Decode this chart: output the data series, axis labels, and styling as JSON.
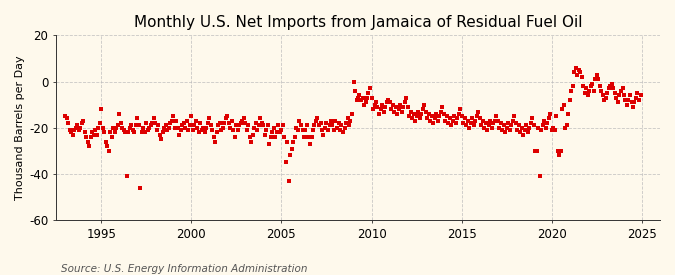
{
  "title": "Monthly U.S. Net Imports from Jamaica of Residual Fuel Oil",
  "ylabel": "Thousand Barrels per Day",
  "source": "Source: U.S. Energy Information Administration",
  "ylim": [
    -60,
    20
  ],
  "yticks": [
    -60,
    -40,
    -20,
    0,
    20
  ],
  "xlim_start": 1992.5,
  "xlim_end": 2026.0,
  "xticks": [
    1995,
    2000,
    2005,
    2010,
    2015,
    2020,
    2025
  ],
  "marker_color": "#dd0000",
  "marker_size": 5,
  "background_color": "#fef9ec",
  "grid_color": "#bbbbbb",
  "title_fontsize": 11,
  "axis_fontsize": 8.5,
  "source_fontsize": 7.5,
  "data": [
    [
      1993.0,
      -15
    ],
    [
      1993.08,
      -16
    ],
    [
      1993.17,
      -18
    ],
    [
      1993.25,
      -21
    ],
    [
      1993.33,
      -22
    ],
    [
      1993.42,
      -23
    ],
    [
      1993.5,
      -21
    ],
    [
      1993.58,
      -20
    ],
    [
      1993.67,
      -19
    ],
    [
      1993.75,
      -21
    ],
    [
      1993.83,
      -20
    ],
    [
      1993.92,
      -18
    ],
    [
      1994.0,
      -17
    ],
    [
      1994.08,
      -22
    ],
    [
      1994.17,
      -24
    ],
    [
      1994.25,
      -26
    ],
    [
      1994.33,
      -28
    ],
    [
      1994.42,
      -24
    ],
    [
      1994.5,
      -22
    ],
    [
      1994.58,
      -23
    ],
    [
      1994.67,
      -21
    ],
    [
      1994.75,
      -23
    ],
    [
      1994.83,
      -20
    ],
    [
      1994.92,
      -18
    ],
    [
      1995.0,
      -12
    ],
    [
      1995.08,
      -20
    ],
    [
      1995.17,
      -22
    ],
    [
      1995.25,
      -26
    ],
    [
      1995.33,
      -28
    ],
    [
      1995.42,
      -30
    ],
    [
      1995.5,
      -22
    ],
    [
      1995.58,
      -24
    ],
    [
      1995.67,
      -20
    ],
    [
      1995.75,
      -22
    ],
    [
      1995.83,
      -20
    ],
    [
      1995.92,
      -19
    ],
    [
      1996.0,
      -14
    ],
    [
      1996.08,
      -18
    ],
    [
      1996.17,
      -20
    ],
    [
      1996.25,
      -21
    ],
    [
      1996.33,
      -22
    ],
    [
      1996.42,
      -41
    ],
    [
      1996.5,
      -22
    ],
    [
      1996.58,
      -20
    ],
    [
      1996.67,
      -19
    ],
    [
      1996.75,
      -21
    ],
    [
      1996.83,
      -22
    ],
    [
      1996.92,
      -19
    ],
    [
      1997.0,
      -16
    ],
    [
      1997.08,
      -19
    ],
    [
      1997.17,
      -46
    ],
    [
      1997.25,
      -22
    ],
    [
      1997.33,
      -20
    ],
    [
      1997.42,
      -22
    ],
    [
      1997.5,
      -18
    ],
    [
      1997.58,
      -21
    ],
    [
      1997.67,
      -20
    ],
    [
      1997.75,
      -19
    ],
    [
      1997.83,
      -18
    ],
    [
      1997.92,
      -16
    ],
    [
      1998.0,
      -18
    ],
    [
      1998.08,
      -21
    ],
    [
      1998.17,
      -19
    ],
    [
      1998.25,
      -23
    ],
    [
      1998.33,
      -25
    ],
    [
      1998.42,
      -22
    ],
    [
      1998.5,
      -20
    ],
    [
      1998.58,
      -19
    ],
    [
      1998.67,
      -21
    ],
    [
      1998.75,
      -20
    ],
    [
      1998.83,
      -18
    ],
    [
      1998.92,
      -17
    ],
    [
      1999.0,
      -15
    ],
    [
      1999.08,
      -20
    ],
    [
      1999.17,
      -17
    ],
    [
      1999.25,
      -20
    ],
    [
      1999.33,
      -23
    ],
    [
      1999.42,
      -21
    ],
    [
      1999.5,
      -19
    ],
    [
      1999.58,
      -18
    ],
    [
      1999.67,
      -20
    ],
    [
      1999.75,
      -17
    ],
    [
      1999.83,
      -21
    ],
    [
      1999.92,
      -19
    ],
    [
      2000.0,
      -15
    ],
    [
      2000.08,
      -21
    ],
    [
      2000.17,
      -19
    ],
    [
      2000.25,
      -17
    ],
    [
      2000.33,
      -20
    ],
    [
      2000.42,
      -22
    ],
    [
      2000.5,
      -18
    ],
    [
      2000.58,
      -21
    ],
    [
      2000.67,
      -20
    ],
    [
      2000.75,
      -22
    ],
    [
      2000.83,
      -20
    ],
    [
      2000.92,
      -18
    ],
    [
      2001.0,
      -16
    ],
    [
      2001.08,
      -19
    ],
    [
      2001.17,
      -21
    ],
    [
      2001.25,
      -24
    ],
    [
      2001.33,
      -26
    ],
    [
      2001.42,
      -22
    ],
    [
      2001.5,
      -19
    ],
    [
      2001.58,
      -18
    ],
    [
      2001.67,
      -21
    ],
    [
      2001.75,
      -20
    ],
    [
      2001.83,
      -18
    ],
    [
      2001.92,
      -16
    ],
    [
      2002.0,
      -15
    ],
    [
      2002.08,
      -18
    ],
    [
      2002.17,
      -20
    ],
    [
      2002.25,
      -17
    ],
    [
      2002.33,
      -21
    ],
    [
      2002.42,
      -24
    ],
    [
      2002.5,
      -19
    ],
    [
      2002.58,
      -21
    ],
    [
      2002.67,
      -19
    ],
    [
      2002.75,
      -18
    ],
    [
      2002.83,
      -17
    ],
    [
      2002.92,
      -16
    ],
    [
      2003.0,
      -18
    ],
    [
      2003.08,
      -21
    ],
    [
      2003.17,
      -19
    ],
    [
      2003.25,
      -24
    ],
    [
      2003.33,
      -26
    ],
    [
      2003.42,
      -23
    ],
    [
      2003.5,
      -20
    ],
    [
      2003.58,
      -18
    ],
    [
      2003.67,
      -21
    ],
    [
      2003.75,
      -19
    ],
    [
      2003.83,
      -16
    ],
    [
      2003.92,
      -18
    ],
    [
      2004.0,
      -19
    ],
    [
      2004.08,
      -23
    ],
    [
      2004.17,
      -21
    ],
    [
      2004.25,
      -19
    ],
    [
      2004.33,
      -27
    ],
    [
      2004.42,
      -24
    ],
    [
      2004.5,
      -22
    ],
    [
      2004.58,
      -20
    ],
    [
      2004.67,
      -24
    ],
    [
      2004.75,
      -22
    ],
    [
      2004.83,
      -19
    ],
    [
      2004.92,
      -22
    ],
    [
      2005.0,
      -21
    ],
    [
      2005.08,
      -19
    ],
    [
      2005.17,
      -24
    ],
    [
      2005.25,
      -35
    ],
    [
      2005.33,
      -26
    ],
    [
      2005.42,
      -43
    ],
    [
      2005.5,
      -32
    ],
    [
      2005.58,
      -29
    ],
    [
      2005.67,
      -26
    ],
    [
      2005.75,
      -24
    ],
    [
      2005.83,
      -20
    ],
    [
      2005.92,
      -21
    ],
    [
      2006.0,
      -17
    ],
    [
      2006.08,
      -19
    ],
    [
      2006.17,
      -21
    ],
    [
      2006.25,
      -24
    ],
    [
      2006.33,
      -21
    ],
    [
      2006.42,
      -19
    ],
    [
      2006.5,
      -24
    ],
    [
      2006.58,
      -27
    ],
    [
      2006.67,
      -24
    ],
    [
      2006.75,
      -21
    ],
    [
      2006.83,
      -19
    ],
    [
      2006.92,
      -17
    ],
    [
      2007.0,
      -16
    ],
    [
      2007.08,
      -19
    ],
    [
      2007.17,
      -18
    ],
    [
      2007.25,
      -21
    ],
    [
      2007.33,
      -23
    ],
    [
      2007.42,
      -20
    ],
    [
      2007.5,
      -18
    ],
    [
      2007.58,
      -21
    ],
    [
      2007.67,
      -19
    ],
    [
      2007.75,
      -17
    ],
    [
      2007.83,
      -19
    ],
    [
      2007.92,
      -21
    ],
    [
      2008.0,
      -17
    ],
    [
      2008.08,
      -20
    ],
    [
      2008.17,
      -18
    ],
    [
      2008.25,
      -21
    ],
    [
      2008.33,
      -19
    ],
    [
      2008.42,
      -22
    ],
    [
      2008.5,
      -20
    ],
    [
      2008.58,
      -18
    ],
    [
      2008.67,
      -16
    ],
    [
      2008.75,
      -19
    ],
    [
      2008.83,
      -17
    ],
    [
      2008.92,
      -14
    ],
    [
      2009.0,
      0
    ],
    [
      2009.08,
      -4
    ],
    [
      2009.17,
      -8
    ],
    [
      2009.25,
      -7
    ],
    [
      2009.33,
      -6
    ],
    [
      2009.42,
      -8
    ],
    [
      2009.5,
      -7
    ],
    [
      2009.58,
      -10
    ],
    [
      2009.67,
      -9
    ],
    [
      2009.75,
      -7
    ],
    [
      2009.83,
      -5
    ],
    [
      2009.92,
      -3
    ],
    [
      2010.0,
      -7
    ],
    [
      2010.08,
      -12
    ],
    [
      2010.17,
      -10
    ],
    [
      2010.25,
      -9
    ],
    [
      2010.33,
      -11
    ],
    [
      2010.42,
      -14
    ],
    [
      2010.5,
      -12
    ],
    [
      2010.58,
      -10
    ],
    [
      2010.67,
      -13
    ],
    [
      2010.75,
      -11
    ],
    [
      2010.83,
      -9
    ],
    [
      2010.92,
      -8
    ],
    [
      2011.0,
      -9
    ],
    [
      2011.08,
      -12
    ],
    [
      2011.17,
      -10
    ],
    [
      2011.25,
      -13
    ],
    [
      2011.33,
      -11
    ],
    [
      2011.42,
      -14
    ],
    [
      2011.5,
      -12
    ],
    [
      2011.58,
      -10
    ],
    [
      2011.67,
      -13
    ],
    [
      2011.75,
      -11
    ],
    [
      2011.83,
      -9
    ],
    [
      2011.92,
      -7
    ],
    [
      2012.0,
      -11
    ],
    [
      2012.08,
      -15
    ],
    [
      2012.17,
      -13
    ],
    [
      2012.25,
      -16
    ],
    [
      2012.33,
      -14
    ],
    [
      2012.42,
      -17
    ],
    [
      2012.5,
      -15
    ],
    [
      2012.58,
      -13
    ],
    [
      2012.67,
      -16
    ],
    [
      2012.75,
      -14
    ],
    [
      2012.83,
      -12
    ],
    [
      2012.92,
      -10
    ],
    [
      2013.0,
      -13
    ],
    [
      2013.08,
      -16
    ],
    [
      2013.17,
      -14
    ],
    [
      2013.25,
      -17
    ],
    [
      2013.33,
      -15
    ],
    [
      2013.42,
      -18
    ],
    [
      2013.5,
      -16
    ],
    [
      2013.58,
      -14
    ],
    [
      2013.67,
      -17
    ],
    [
      2013.75,
      -15
    ],
    [
      2013.83,
      -13
    ],
    [
      2013.92,
      -11
    ],
    [
      2014.0,
      -14
    ],
    [
      2014.08,
      -17
    ],
    [
      2014.17,
      -15
    ],
    [
      2014.25,
      -18
    ],
    [
      2014.33,
      -16
    ],
    [
      2014.42,
      -19
    ],
    [
      2014.5,
      -17
    ],
    [
      2014.58,
      -15
    ],
    [
      2014.67,
      -18
    ],
    [
      2014.75,
      -16
    ],
    [
      2014.83,
      -14
    ],
    [
      2014.92,
      -12
    ],
    [
      2015.0,
      -15
    ],
    [
      2015.08,
      -18
    ],
    [
      2015.17,
      -16
    ],
    [
      2015.25,
      -19
    ],
    [
      2015.33,
      -17
    ],
    [
      2015.42,
      -20
    ],
    [
      2015.5,
      -18
    ],
    [
      2015.58,
      -16
    ],
    [
      2015.67,
      -19
    ],
    [
      2015.75,
      -17
    ],
    [
      2015.83,
      -15
    ],
    [
      2015.92,
      -13
    ],
    [
      2016.0,
      -16
    ],
    [
      2016.08,
      -19
    ],
    [
      2016.17,
      -17
    ],
    [
      2016.25,
      -20
    ],
    [
      2016.33,
      -18
    ],
    [
      2016.42,
      -21
    ],
    [
      2016.5,
      -19
    ],
    [
      2016.58,
      -17
    ],
    [
      2016.67,
      -20
    ],
    [
      2016.75,
      -18
    ],
    [
      2016.83,
      -17
    ],
    [
      2016.92,
      -15
    ],
    [
      2017.0,
      -17
    ],
    [
      2017.08,
      -20
    ],
    [
      2017.17,
      -18
    ],
    [
      2017.25,
      -21
    ],
    [
      2017.33,
      -19
    ],
    [
      2017.42,
      -22
    ],
    [
      2017.5,
      -20
    ],
    [
      2017.58,
      -18
    ],
    [
      2017.67,
      -21
    ],
    [
      2017.75,
      -19
    ],
    [
      2017.83,
      -17
    ],
    [
      2017.92,
      -15
    ],
    [
      2018.0,
      -18
    ],
    [
      2018.08,
      -21
    ],
    [
      2018.17,
      -19
    ],
    [
      2018.25,
      -22
    ],
    [
      2018.33,
      -20
    ],
    [
      2018.42,
      -23
    ],
    [
      2018.5,
      -21
    ],
    [
      2018.58,
      -19
    ],
    [
      2018.67,
      -22
    ],
    [
      2018.75,
      -20
    ],
    [
      2018.83,
      -18
    ],
    [
      2018.92,
      -16
    ],
    [
      2019.0,
      -19
    ],
    [
      2019.08,
      -30
    ],
    [
      2019.17,
      -30
    ],
    [
      2019.25,
      -20
    ],
    [
      2019.33,
      -41
    ],
    [
      2019.42,
      -21
    ],
    [
      2019.5,
      -19
    ],
    [
      2019.58,
      -17
    ],
    [
      2019.67,
      -20
    ],
    [
      2019.75,
      -18
    ],
    [
      2019.83,
      -16
    ],
    [
      2019.92,
      -14
    ],
    [
      2020.0,
      -21
    ],
    [
      2020.08,
      -20
    ],
    [
      2020.17,
      -21
    ],
    [
      2020.25,
      -15
    ],
    [
      2020.33,
      -30
    ],
    [
      2020.42,
      -32
    ],
    [
      2020.5,
      -30
    ],
    [
      2020.58,
      -12
    ],
    [
      2020.67,
      -10
    ],
    [
      2020.75,
      -20
    ],
    [
      2020.83,
      -19
    ],
    [
      2020.92,
      -14
    ],
    [
      2021.0,
      -8
    ],
    [
      2021.08,
      -4
    ],
    [
      2021.17,
      -2
    ],
    [
      2021.25,
      4
    ],
    [
      2021.33,
      6
    ],
    [
      2021.42,
      3
    ],
    [
      2021.5,
      5
    ],
    [
      2021.58,
      4
    ],
    [
      2021.67,
      2
    ],
    [
      2021.75,
      -2
    ],
    [
      2021.83,
      -5
    ],
    [
      2021.92,
      -3
    ],
    [
      2022.0,
      -6
    ],
    [
      2022.08,
      -4
    ],
    [
      2022.17,
      -2
    ],
    [
      2022.25,
      -1
    ],
    [
      2022.33,
      -4
    ],
    [
      2022.42,
      1
    ],
    [
      2022.5,
      3
    ],
    [
      2022.58,
      1
    ],
    [
      2022.67,
      -2
    ],
    [
      2022.75,
      -4
    ],
    [
      2022.83,
      -6
    ],
    [
      2022.92,
      -8
    ],
    [
      2023.0,
      -7
    ],
    [
      2023.08,
      -5
    ],
    [
      2023.17,
      -3
    ],
    [
      2023.25,
      -2
    ],
    [
      2023.33,
      -1
    ],
    [
      2023.42,
      -3
    ],
    [
      2023.5,
      -5
    ],
    [
      2023.58,
      -7
    ],
    [
      2023.67,
      -9
    ],
    [
      2023.75,
      -6
    ],
    [
      2023.83,
      -4
    ],
    [
      2023.92,
      -3
    ],
    [
      2024.0,
      -6
    ],
    [
      2024.08,
      -8
    ],
    [
      2024.17,
      -10
    ],
    [
      2024.25,
      -8
    ],
    [
      2024.33,
      -6
    ],
    [
      2024.42,
      -9
    ],
    [
      2024.5,
      -11
    ],
    [
      2024.58,
      -9
    ],
    [
      2024.67,
      -7
    ],
    [
      2024.75,
      -5
    ],
    [
      2024.83,
      -8
    ],
    [
      2024.92,
      -6
    ]
  ]
}
